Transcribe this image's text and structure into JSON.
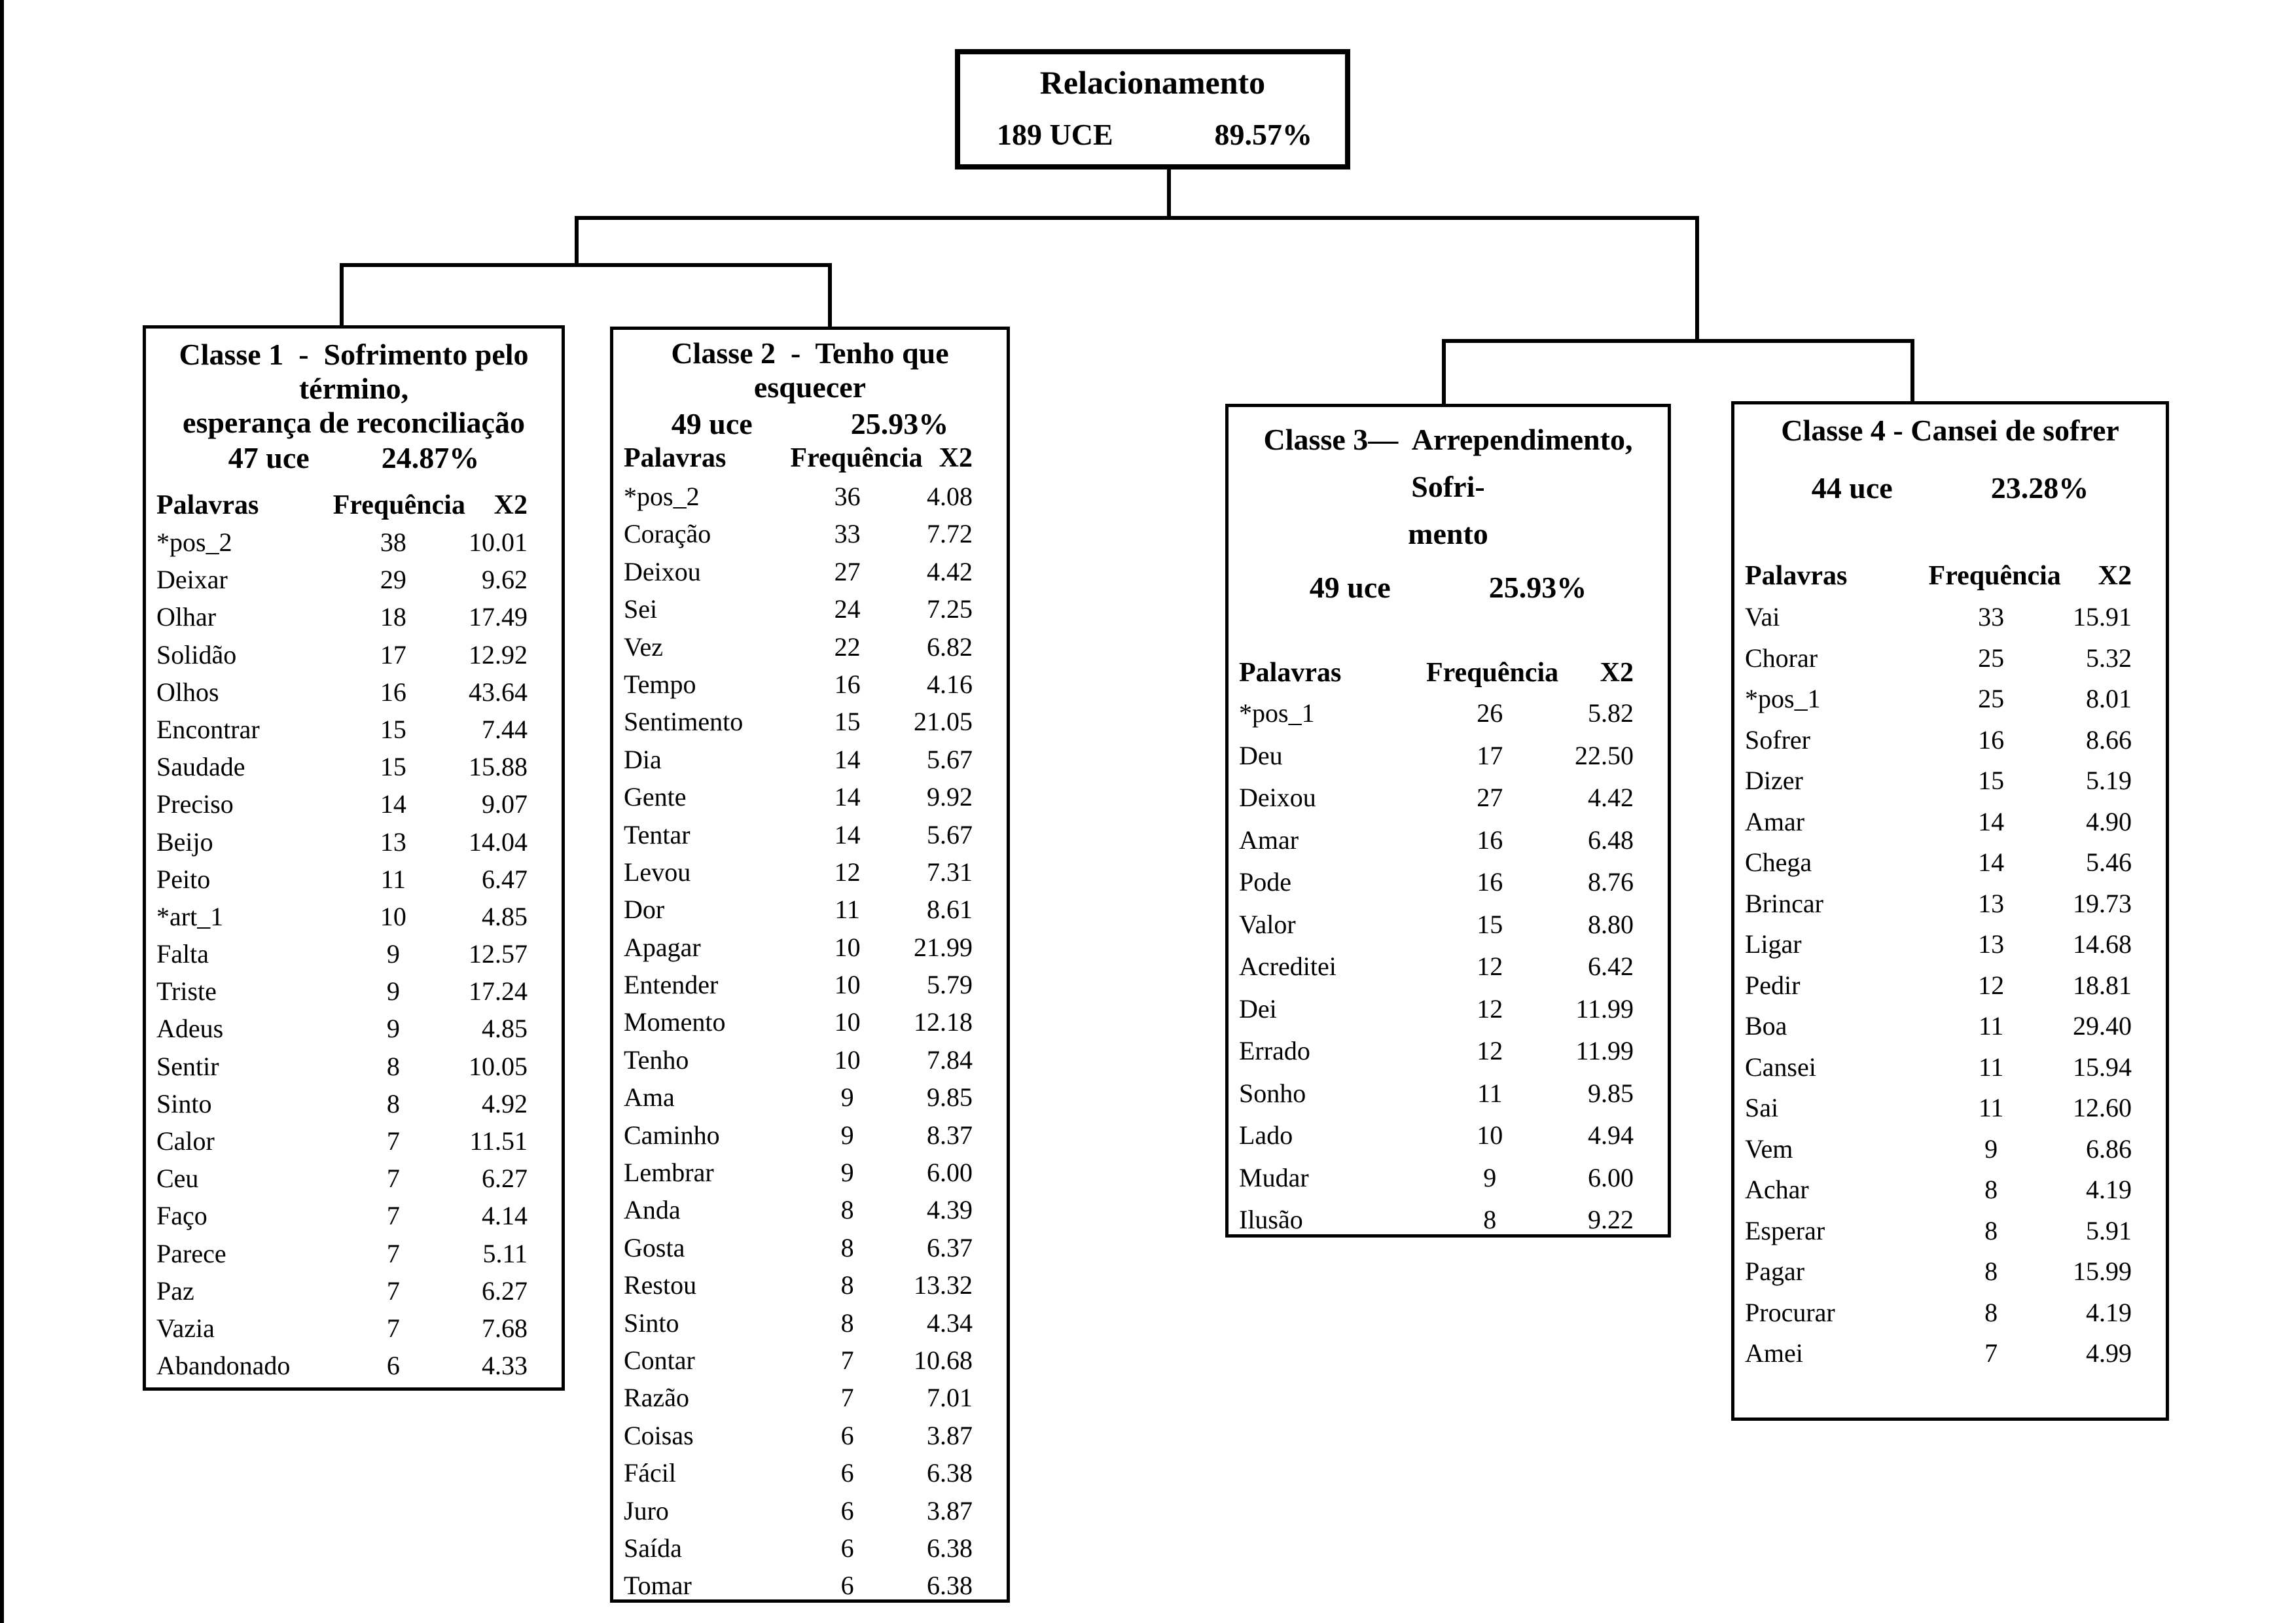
{
  "root": {
    "title": "Relacionamento",
    "uce": "189 UCE",
    "percent": "89.57%"
  },
  "columns": {
    "word": "Palavras",
    "freq": "Frequência",
    "x2": "X2"
  },
  "classes": [
    {
      "title_lines": [
        "Classe 1  -  Sofrimento pelo término,",
        "esperança de reconciliação"
      ],
      "uce": "47 uce",
      "percent": "24.87%",
      "rows": [
        [
          "*pos_2",
          "38",
          "10.01"
        ],
        [
          "Deixar",
          "29",
          "9.62"
        ],
        [
          "Olhar",
          "18",
          "17.49"
        ],
        [
          "Solidão",
          "17",
          "12.92"
        ],
        [
          "Olhos",
          "16",
          "43.64"
        ],
        [
          "Encontrar",
          "15",
          "7.44"
        ],
        [
          "Saudade",
          "15",
          "15.88"
        ],
        [
          "Preciso",
          "14",
          "9.07"
        ],
        [
          "Beijo",
          "13",
          "14.04"
        ],
        [
          "Peito",
          "11",
          "6.47"
        ],
        [
          "*art_1",
          "10",
          "4.85"
        ],
        [
          "Falta",
          "9",
          "12.57"
        ],
        [
          "Triste",
          "9",
          "17.24"
        ],
        [
          "Adeus",
          "9",
          "4.85"
        ],
        [
          "Sentir",
          "8",
          "10.05"
        ],
        [
          "Sinto",
          "8",
          "4.92"
        ],
        [
          "Calor",
          "7",
          "11.51"
        ],
        [
          "Ceu",
          "7",
          "6.27"
        ],
        [
          "Faço",
          "7",
          "4.14"
        ],
        [
          "Parece",
          "7",
          "5.11"
        ],
        [
          "Paz",
          "7",
          "6.27"
        ],
        [
          "Vazia",
          "7",
          "7.68"
        ],
        [
          "Abandonado",
          "6",
          "4.33"
        ]
      ]
    },
    {
      "title_lines": [
        "Classe 2  -  Tenho que esquecer"
      ],
      "uce": "49  uce",
      "percent": "25.93%",
      "rows": [
        [
          "*pos_2",
          "36",
          "4.08"
        ],
        [
          "Coração",
          "33",
          "7.72"
        ],
        [
          "Deixou",
          "27",
          "4.42"
        ],
        [
          "Sei",
          "24",
          "7.25"
        ],
        [
          "Vez",
          "22",
          "6.82"
        ],
        [
          "Tempo",
          "16",
          "4.16"
        ],
        [
          "Sentimento",
          "15",
          "21.05"
        ],
        [
          "Dia",
          "14",
          "5.67"
        ],
        [
          "Gente",
          "14",
          "9.92"
        ],
        [
          "Tentar",
          "14",
          "5.67"
        ],
        [
          "Levou",
          "12",
          "7.31"
        ],
        [
          "Dor",
          "11",
          "8.61"
        ],
        [
          "Apagar",
          "10",
          "21.99"
        ],
        [
          "Entender",
          "10",
          "5.79"
        ],
        [
          "Momento",
          "10",
          "12.18"
        ],
        [
          "Tenho",
          "10",
          "7.84"
        ],
        [
          "Ama",
          "9",
          "9.85"
        ],
        [
          "Caminho",
          "9",
          "8.37"
        ],
        [
          "Lembrar",
          "9",
          "6.00"
        ],
        [
          "Anda",
          "8",
          "4.39"
        ],
        [
          "Gosta",
          "8",
          "6.37"
        ],
        [
          "Restou",
          "8",
          "13.32"
        ],
        [
          "Sinto",
          "8",
          "4.34"
        ],
        [
          "Contar",
          "7",
          "10.68"
        ],
        [
          "Razão",
          "7",
          "7.01"
        ],
        [
          "Coisas",
          "6",
          "3.87"
        ],
        [
          "Fácil",
          "6",
          "6.38"
        ],
        [
          "Juro",
          "6",
          "3.87"
        ],
        [
          "Saída",
          "6",
          "6.38"
        ],
        [
          "Tomar",
          "6",
          "6.38"
        ]
      ]
    },
    {
      "title_lines": [
        "Classe 3—  Arrependimento, Sofri-",
        "mento"
      ],
      "uce": "49  uce",
      "percent": "25.93%",
      "rows": [
        [
          "*pos_1",
          "26",
          "5.82"
        ],
        [
          "Deu",
          "17",
          "22.50"
        ],
        [
          "Deixou",
          "27",
          "4.42"
        ],
        [
          "Amar",
          "16",
          "6.48"
        ],
        [
          "Pode",
          "16",
          "8.76"
        ],
        [
          "Valor",
          "15",
          "8.80"
        ],
        [
          "Acreditei",
          "12",
          "6.42"
        ],
        [
          "Dei",
          "12",
          "11.99"
        ],
        [
          "Errado",
          "12",
          "11.99"
        ],
        [
          "Sonho",
          "11",
          "9.85"
        ],
        [
          "Lado",
          "10",
          "4.94"
        ],
        [
          "Mudar",
          "9",
          "6.00"
        ],
        [
          "Ilusão",
          "8",
          "9.22"
        ]
      ]
    },
    {
      "title_lines": [
        "Classe 4 - Cansei de sofrer"
      ],
      "uce": "44  uce",
      "percent": "23.28%",
      "rows": [
        [
          "Vai",
          "33",
          "15.91"
        ],
        [
          "Chorar",
          "25",
          "5.32"
        ],
        [
          "*pos_1",
          "25",
          "8.01"
        ],
        [
          "Sofrer",
          "16",
          "8.66"
        ],
        [
          "Dizer",
          "15",
          "5.19"
        ],
        [
          "Amar",
          "14",
          "4.90"
        ],
        [
          "Chega",
          "14",
          "5.46"
        ],
        [
          "Brincar",
          "13",
          "19.73"
        ],
        [
          "Ligar",
          "13",
          "14.68"
        ],
        [
          "Pedir",
          "12",
          "18.81"
        ],
        [
          "Boa",
          "11",
          "29.40"
        ],
        [
          "Cansei",
          "11",
          "15.94"
        ],
        [
          "Sai",
          "11",
          "12.60"
        ],
        [
          "Vem",
          "9",
          "6.86"
        ],
        [
          "Achar",
          "8",
          "4.19"
        ],
        [
          "Esperar",
          "8",
          "5.91"
        ],
        [
          "Pagar",
          "8",
          "15.99"
        ],
        [
          "Procurar",
          "8",
          "4.19"
        ],
        [
          "Amei",
          "7",
          "4.99"
        ]
      ]
    }
  ]
}
